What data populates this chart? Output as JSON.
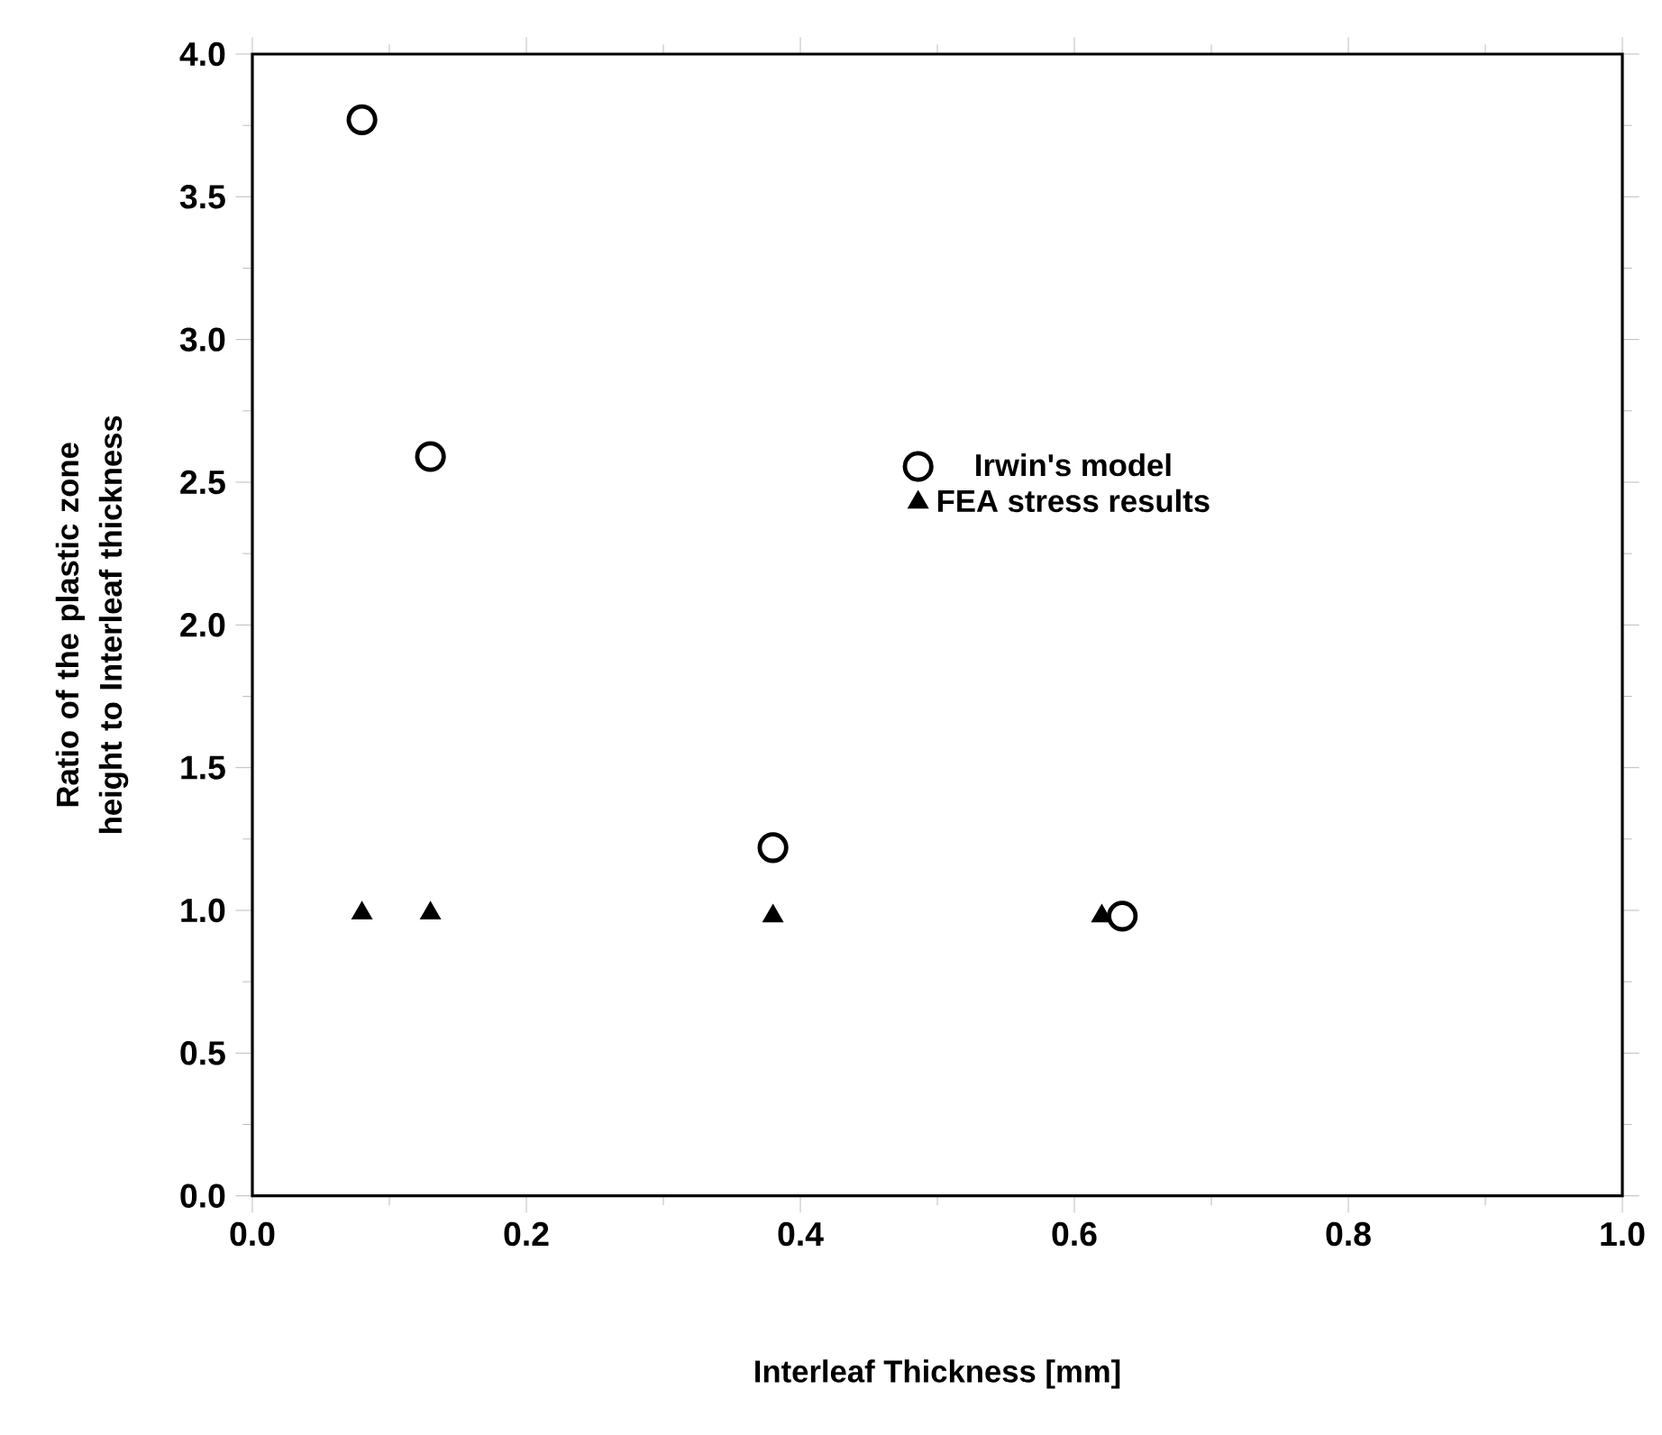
{
  "chart_data": {
    "type": "scatter",
    "xlabel": "Interleaf Thickness [mm]",
    "ylabel": "Ratio of the plastic zone height to Interleaf thickness",
    "xlim": [
      0,
      1
    ],
    "ylim": [
      0,
      4
    ],
    "xticks": [
      {
        "value": 0,
        "label": "0.0"
      },
      0.2,
      0.4,
      0.6,
      0.8,
      {
        "value": 1,
        "label": "1.0"
      }
    ],
    "yticks": [
      {
        "value": 0,
        "label": "0.0"
      },
      0.5,
      {
        "value": 1,
        "label": "1.0"
      },
      1.5,
      {
        "value": 2,
        "label": "2.0"
      },
      2.5,
      {
        "value": 3,
        "label": "3.0"
      },
      3.5,
      {
        "value": 4,
        "label": "4.0"
      }
    ],
    "legend": "center",
    "grid": false,
    "series": [
      {
        "name": "Irwin's model",
        "color": "#000000",
        "marker": "circle",
        "x": [
          0.08,
          0.13,
          0.38,
          0.635
        ],
        "values": [
          3.77,
          2.59,
          1.22,
          0.98
        ]
      },
      {
        "name": "FEA stress results",
        "color": "#000000",
        "marker": "triangle",
        "x": [
          0.08,
          0.13,
          0.38,
          0.62
        ],
        "values": [
          0.99,
          0.99,
          0.98,
          0.98
        ]
      }
    ]
  }
}
